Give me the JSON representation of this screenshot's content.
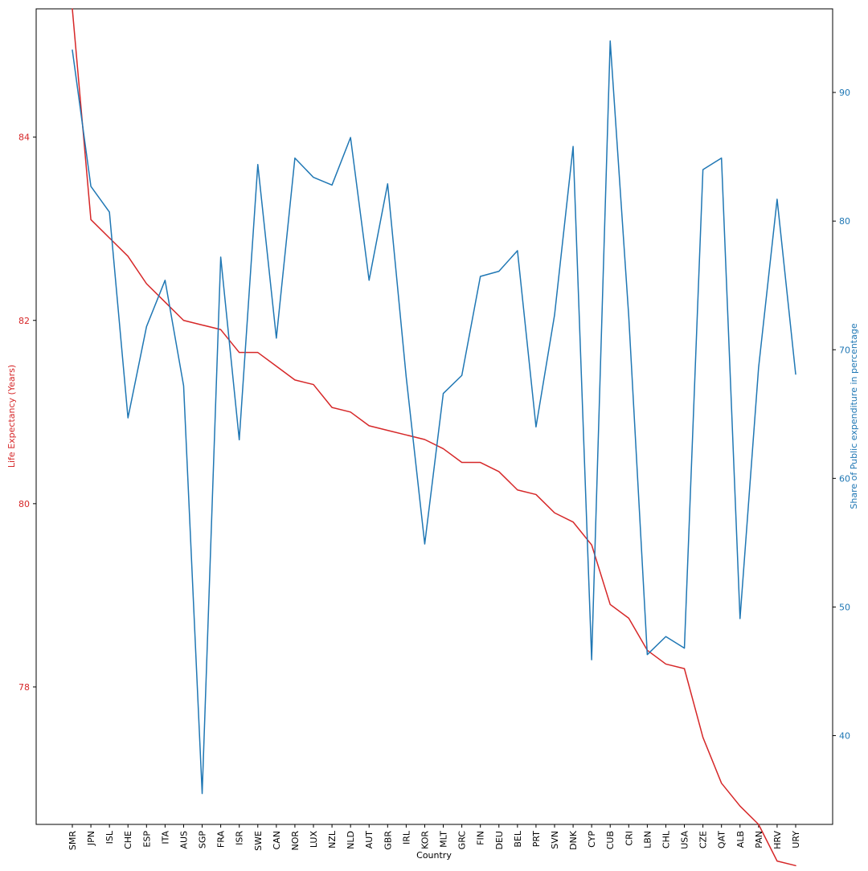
{
  "chart_data": {
    "type": "line",
    "xlabel": "Country",
    "ylabel_left": "Life Expectancy (Years)",
    "ylabel_right": "Share of Public expenditure in percentage",
    "left_color": "#d62728",
    "right_color": "#1f77b4",
    "ylim_left": [
      76.5,
      85.4
    ],
    "ylim_right": [
      33.1,
      96.5
    ],
    "yticks_left": [
      78,
      80,
      82,
      84
    ],
    "yticks_right": [
      40,
      50,
      60,
      70,
      80,
      90
    ],
    "categories": [
      "SMR",
      "JPN",
      "ISL",
      "CHE",
      "ESP",
      "ITA",
      "AUS",
      "SGP",
      "FRA",
      "ISR",
      "SWE",
      "CAN",
      "NOR",
      "LUX",
      "NZL",
      "NLD",
      "AUT",
      "GBR",
      "IRL",
      "KOR",
      "MLT",
      "GRC",
      "FIN",
      "DEU",
      "BEL",
      "PRT",
      "SVN",
      "DNK",
      "CYP",
      "CUB",
      "CRI",
      "LBN",
      "CHL",
      "USA",
      "CZE",
      "QAT",
      "ALB",
      "PAN",
      "HRV",
      "URY"
    ],
    "series": [
      {
        "axis": "left",
        "color": "#d62728",
        "values": [
          85.4,
          83.1,
          82.9,
          82.7,
          82.4,
          82.2,
          82.0,
          81.95,
          81.9,
          81.65,
          81.65,
          81.5,
          81.35,
          81.3,
          81.05,
          81.0,
          80.85,
          80.8,
          80.75,
          80.7,
          80.6,
          80.45,
          80.45,
          80.35,
          80.15,
          80.1,
          79.9,
          79.8,
          79.55,
          78.9,
          78.75,
          78.4,
          78.25,
          78.2,
          77.45,
          76.95,
          76.7,
          76.5,
          76.1,
          76.05
        ]
      },
      {
        "axis": "right",
        "color": "#1f77b4",
        "values": [
          93.3,
          82.7,
          80.7,
          64.7,
          71.8,
          75.4,
          67.2,
          35.5,
          77.2,
          63.0,
          84.4,
          70.9,
          84.9,
          83.4,
          82.8,
          86.5,
          75.4,
          82.9,
          67.9,
          54.9,
          66.6,
          68.0,
          75.7,
          76.1,
          77.7,
          64.0,
          72.7,
          85.8,
          45.9,
          94.0,
          72.6,
          46.3,
          47.7,
          46.8,
          84.0,
          84.9,
          49.1,
          68.6,
          81.7,
          68.1
        ]
      }
    ],
    "grid": false
  }
}
